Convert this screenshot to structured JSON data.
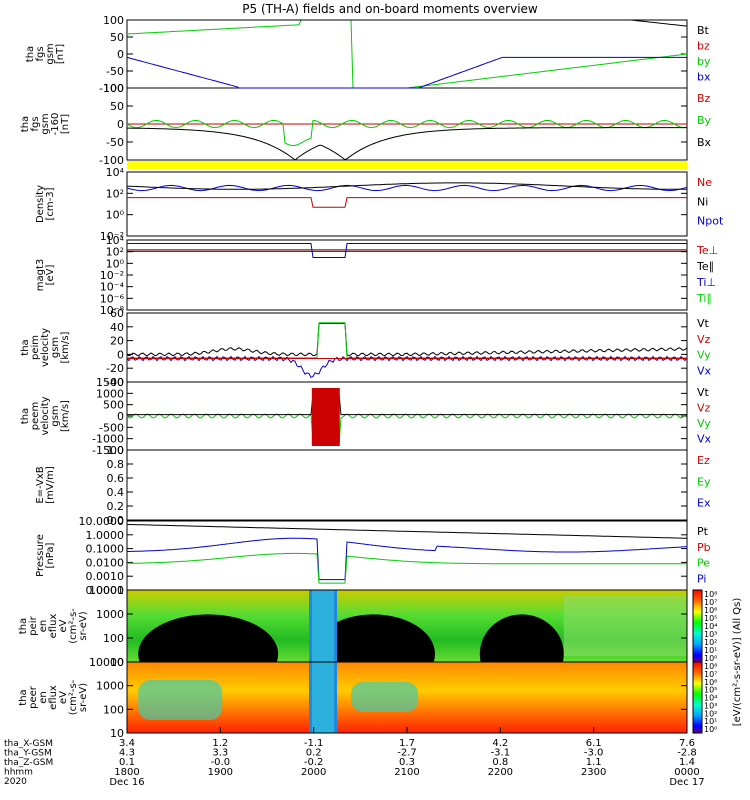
{
  "title": "P5 (TH-A) fields and on-board moments overview",
  "colors": {
    "black": "#000000",
    "red": "#cc0000",
    "green": "#00cc00",
    "blue": "#0000cc",
    "yellow": "#ffff00",
    "cyan": "#22cccc"
  },
  "chart_data": {
    "type": "line",
    "x_ticks": [
      "1800",
      "1900",
      "2000",
      "2100",
      "2200",
      "2300",
      "0000"
    ],
    "x_dates": [
      "Dec 16",
      "",
      "",
      "",
      "",
      "",
      "Dec 17"
    ],
    "orbit": {
      "labels": [
        "tha_X-GSM",
        "tha_Y-GSM",
        "tha_Z-GSM",
        "hhmm",
        "2020"
      ],
      "rows": [
        [
          "3.4",
          "1.2",
          "-1.1",
          "1.7",
          "4.2",
          "6.1",
          "7.6"
        ],
        [
          "4.3",
          "3.3",
          "0.2",
          "-2.7",
          "-3.1",
          "-3.0",
          "-2.8"
        ],
        [
          "0.1",
          "-0.0",
          "-0.2",
          "0.3",
          "0.8",
          "1.1",
          "1.4"
        ]
      ]
    },
    "panels": [
      {
        "id": "fgs",
        "ylabel": [
          "tha",
          "fgs",
          "gsm",
          "[nT]"
        ],
        "ticks": [
          "100",
          "50",
          "0",
          "-50",
          "-100"
        ],
        "legend": [
          {
            "text": "Bt",
            "color": "black"
          },
          {
            "text": "bz",
            "color": "red"
          },
          {
            "text": "by",
            "color": "green"
          },
          {
            "text": "bx",
            "color": "blue"
          }
        ]
      },
      {
        "id": "fgs_hp",
        "ylabel": [
          "tha",
          "fgs",
          "gsm",
          "-160",
          "[nT]"
        ],
        "ticks": [
          "100",
          "50",
          "0",
          "-50",
          "-100"
        ],
        "legend": [
          {
            "text": "Bz",
            "color": "red"
          },
          {
            "text": "By",
            "color": "green"
          },
          {
            "text": "Bx",
            "color": "black"
          }
        ]
      },
      {
        "id": "density",
        "ylabel": [
          "Density",
          "[cm-3]"
        ],
        "ticks": [
          "10⁴",
          "10²",
          "10⁰",
          "10⁻²"
        ],
        "legend": [
          {
            "text": "Ne",
            "color": "red"
          },
          {
            "text": "Ni",
            "color": "black"
          },
          {
            "text": "Npot",
            "color": "blue"
          }
        ]
      },
      {
        "id": "temp",
        "ylabel": [
          "magt3",
          "[eV]"
        ],
        "ticks": [
          "10⁴",
          "10²",
          "10⁰",
          "10⁻²",
          "10⁻⁴",
          "10⁻⁶",
          "10⁻⁸"
        ],
        "legend": [
          {
            "text": "Te⊥",
            "color": "red"
          },
          {
            "text": "Te∥",
            "color": "black"
          },
          {
            "text": "Ti⊥",
            "color": "blue"
          },
          {
            "text": "Ti∥",
            "color": "green"
          }
        ]
      },
      {
        "id": "peim_v",
        "ylabel": [
          "tha",
          "peim",
          "velocity",
          "gsm",
          "[km/s]"
        ],
        "ticks": [
          "60",
          "40",
          "20",
          "0",
          "-20",
          "-40"
        ],
        "legend": [
          {
            "text": "Vt",
            "color": "black"
          },
          {
            "text": "Vz",
            "color": "red"
          },
          {
            "text": "Vy",
            "color": "green"
          },
          {
            "text": "Vx",
            "color": "blue"
          }
        ]
      },
      {
        "id": "peem_v",
        "ylabel": [
          "tha",
          "peem",
          "velocity",
          "gsm",
          "[km/s]"
        ],
        "ticks": [
          "1500",
          "1000",
          "500",
          "0",
          "-500",
          "-1000",
          "-1500"
        ],
        "legend": [
          {
            "text": "Vt",
            "color": "black"
          },
          {
            "text": "Vz",
            "color": "red"
          },
          {
            "text": "Vy",
            "color": "green"
          },
          {
            "text": "Vx",
            "color": "blue"
          }
        ]
      },
      {
        "id": "efield",
        "ylabel": [
          "E=-VxB",
          "[mV/m]"
        ],
        "ticks": [
          "1.0",
          "0.8",
          "0.6",
          "0.4",
          "0.2",
          "0.0"
        ],
        "legend": [
          {
            "text": "Ez",
            "color": "red"
          },
          {
            "text": "Ey",
            "color": "green"
          },
          {
            "text": "Ex",
            "color": "blue"
          }
        ]
      },
      {
        "id": "pressure",
        "ylabel": [
          "Pressure",
          "[nPa]"
        ],
        "ticks": [
          "10.0000",
          "1.0000",
          "0.1000",
          "0.0100",
          "0.0010",
          "0.0001"
        ],
        "legend": [
          {
            "text": "Pt",
            "color": "black"
          },
          {
            "text": "Pb",
            "color": "red"
          },
          {
            "text": "Pe",
            "color": "green"
          },
          {
            "text": "Pi",
            "color": "blue"
          }
        ]
      },
      {
        "id": "peir",
        "ylabel": [
          "tha",
          "peir",
          "en",
          "eflux",
          "eV",
          "(cm²-s-",
          "sr-eV)"
        ],
        "ticks": [
          "10000",
          "1000",
          "100",
          "10"
        ],
        "legend": []
      },
      {
        "id": "peer",
        "ylabel": [
          "tha",
          "peer",
          "en",
          "eflux",
          "eV",
          "(cm²-s-",
          "sr-eV)"
        ],
        "ticks": [
          "10000",
          "1000",
          "100",
          "10"
        ],
        "legend": []
      }
    ],
    "colorbar": {
      "label": "[eV/(cm²-s-sr-eV)] (All Qs)",
      "ticks": [
        "10⁸",
        "10⁷",
        "10⁶",
        "10⁵",
        "10⁴",
        "10³",
        "10²",
        "10¹",
        "10⁰"
      ]
    }
  }
}
